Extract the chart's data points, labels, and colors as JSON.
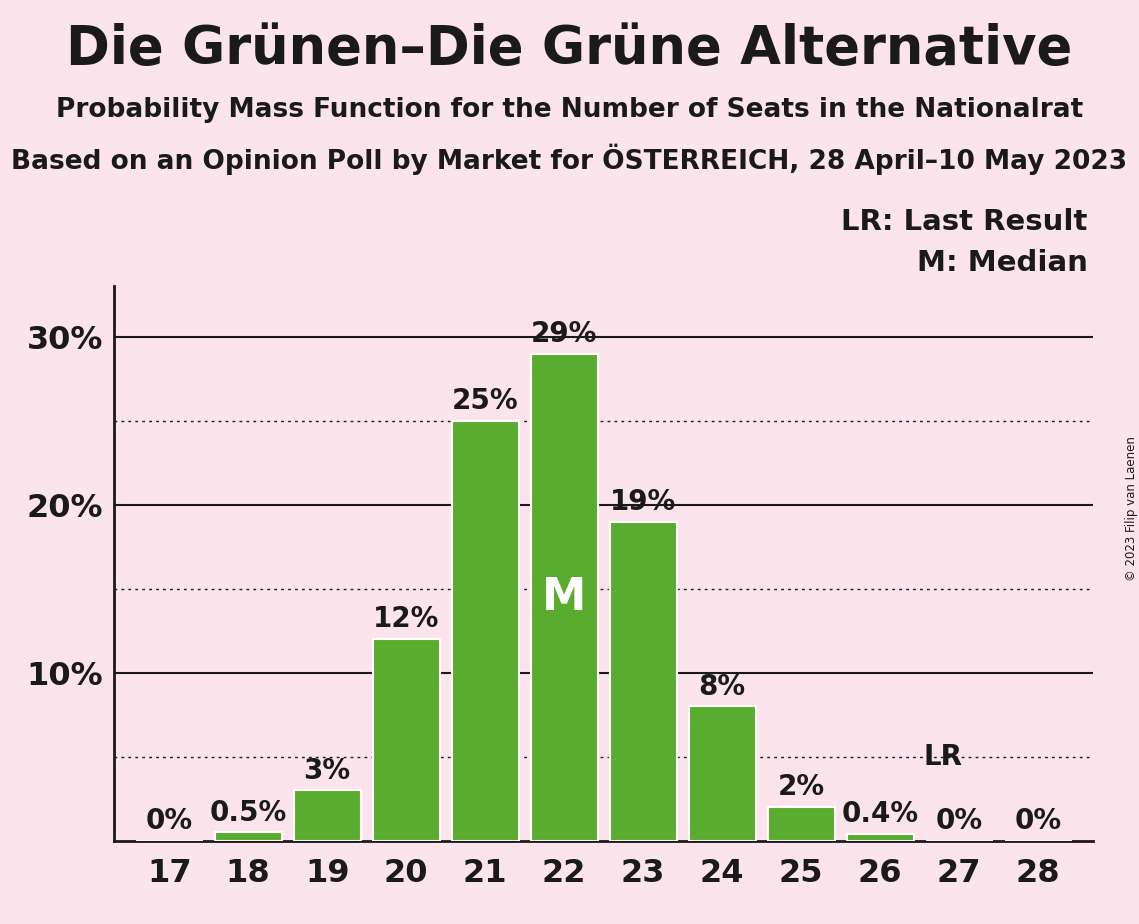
{
  "title": "Die Grünen–Die Grüne Alternative",
  "subtitle1": "Probability Mass Function for the Number of Seats in the Nationalrat",
  "subtitle2": "Based on an Opinion Poll by Market for ÖSTERREICH, 28 April–10 May 2023",
  "copyright": "© 2023 Filip van Laenen",
  "categories": [
    17,
    18,
    19,
    20,
    21,
    22,
    23,
    24,
    25,
    26,
    27,
    28
  ],
  "values": [
    0.0,
    0.5,
    3.0,
    12.0,
    25.0,
    29.0,
    19.0,
    8.0,
    2.0,
    0.4,
    0.0,
    0.0
  ],
  "labels": [
    "0%",
    "0.5%",
    "3%",
    "12%",
    "25%",
    "29%",
    "19%",
    "8%",
    "2%",
    "0.4%",
    "0%",
    "0%"
  ],
  "bar_color": "#5aac2e",
  "background_color": "#fce4ec",
  "median_seat": 22,
  "lr_seat": 26,
  "lr_value": 0.4,
  "ylim": [
    0,
    33
  ],
  "dotted_yticks": [
    5,
    15,
    25
  ],
  "solid_yticks": [
    10,
    20,
    30
  ],
  "title_fontsize": 38,
  "subtitle_fontsize": 19,
  "label_fontsize": 20,
  "tick_fontsize": 23,
  "legend_fontsize": 21,
  "median_label_fontsize": 32,
  "axis_color": "#1a1a1a",
  "text_color": "#1a1a1a",
  "white": "#ffffff"
}
